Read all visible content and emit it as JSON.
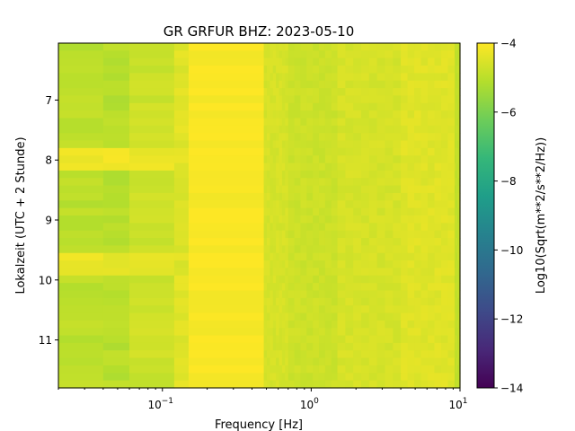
{
  "chart_data": {
    "type": "heatmap",
    "title": "GR GRFUR  BHZ: 2023-05-10",
    "xlabel": "Frequency [Hz]",
    "ylabel": "Lokalzeit (UTC + 2 Stunde)",
    "xscale": "log",
    "xlim": [
      0.02,
      10
    ],
    "ylim": [
      11.8,
      6.05
    ],
    "x_ticks": [
      {
        "value": 0.1,
        "base": "10",
        "exp": "−1"
      },
      {
        "value": 1,
        "base": "10",
        "exp": "0"
      },
      {
        "value": 10,
        "base": "10",
        "exp": "1"
      }
    ],
    "y_ticks": [
      {
        "value": 7,
        "label": "7"
      },
      {
        "value": 8,
        "label": "8"
      },
      {
        "value": 9,
        "label": "9"
      },
      {
        "value": 10,
        "label": "10"
      },
      {
        "value": 11,
        "label": "11"
      }
    ],
    "colorbar": {
      "colormap": "viridis",
      "label": "Log10(Sqrt(m**2/s**2/Hz))",
      "range": [
        -14,
        -4
      ],
      "ticks": [
        {
          "value": -4,
          "label": "−4"
        },
        {
          "value": -6,
          "label": "−6"
        },
        {
          "value": -8,
          "label": "−8"
        },
        {
          "value": -10,
          "label": "−10"
        },
        {
          "value": -12,
          "label": "−12"
        },
        {
          "value": -14,
          "label": "−14"
        }
      ]
    },
    "grid": false,
    "frequency_bands": [
      {
        "f_min": 0.02,
        "f_max": 0.04,
        "value": -5.0
      },
      {
        "f_min": 0.04,
        "f_max": 0.06,
        "value": -5.05
      },
      {
        "f_min": 0.06,
        "f_max": 0.12,
        "value": -4.75
      },
      {
        "f_min": 0.12,
        "f_max": 0.15,
        "value": -4.45
      },
      {
        "f_min": 0.15,
        "f_max": 0.48,
        "value": -4.05
      },
      {
        "f_min": 0.48,
        "f_max": 0.7,
        "value": -4.6
      },
      {
        "f_min": 0.7,
        "f_max": 1.5,
        "value": -4.75
      },
      {
        "f_min": 1.5,
        "f_max": 4.0,
        "value": -4.6
      },
      {
        "f_min": 4.0,
        "f_max": 9.2,
        "value": -4.45
      },
      {
        "f_min": 9.2,
        "f_max": 10.0,
        "value": -4.9
      }
    ],
    "time_events": [
      {
        "t_start": 7.8,
        "t_end": 8.2,
        "f_max": 0.12,
        "value": -4.2
      },
      {
        "t_start": 9.5,
        "t_end": 9.9,
        "f_max": 0.12,
        "value": -4.3
      }
    ]
  }
}
